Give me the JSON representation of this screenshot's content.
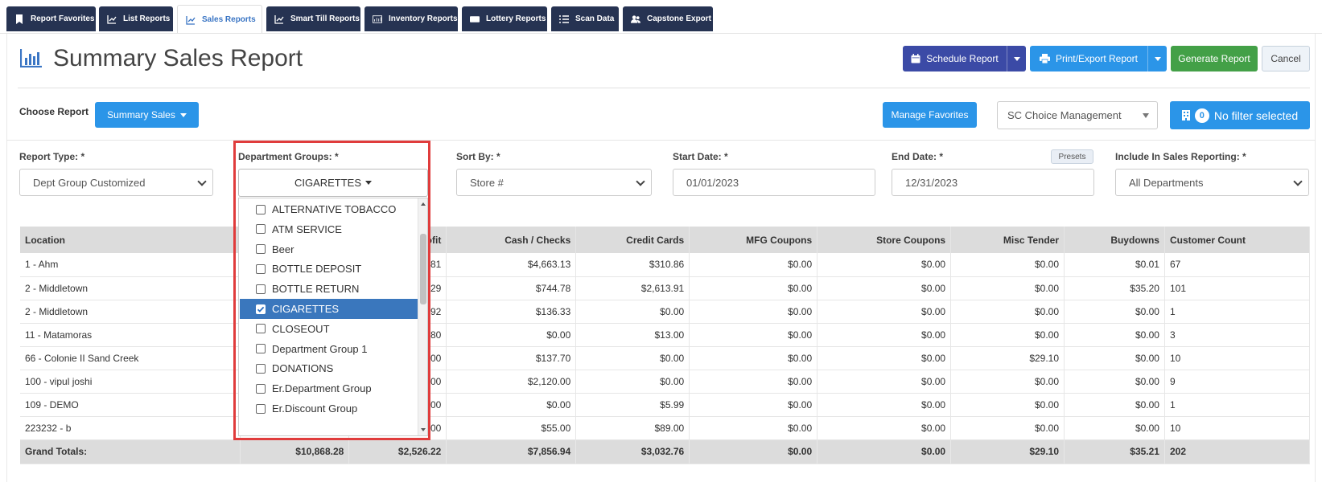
{
  "tabs": [
    {
      "label": "Report Favorites",
      "icon": "bookmark-icon"
    },
    {
      "label": "List Reports",
      "icon": "line-chart-icon"
    },
    {
      "label": "Sales Reports",
      "icon": "line-chart-icon"
    },
    {
      "label": "Smart Till Reports",
      "icon": "line-chart-icon"
    },
    {
      "label": "Inventory Reports",
      "icon": "inventory-icon"
    },
    {
      "label": "Lottery Reports",
      "icon": "ticket-icon"
    },
    {
      "label": "Scan Data",
      "icon": "list-icon"
    },
    {
      "label": "Capstone Export",
      "icon": "users-icon"
    }
  ],
  "header": {
    "title": "Summary Sales Report",
    "schedule_label": "Schedule Report",
    "print_label": "Print/Export Report",
    "generate_label": "Generate Report",
    "cancel_label": "Cancel"
  },
  "choose": {
    "label": "Choose Report",
    "report_button": "Summary Sales",
    "manage_label": "Manage Favorites",
    "store_select": "SC Choice Management",
    "filter_count": "0",
    "filter_label": "No filter selected"
  },
  "filters": {
    "report_type_label": "Report Type: *",
    "report_type_value": "Dept Group Customized",
    "dept_groups_label": "Department Groups: *",
    "dept_groups_value": "CIGARETTES",
    "sort_by_label": "Sort By: *",
    "sort_by_value": "Store #",
    "start_date_label": "Start Date: *",
    "start_date_value": "01/01/2023",
    "end_date_label": "End Date: *",
    "end_date_value": "12/31/2023",
    "presets_label": "Presets",
    "include_label": "Include In Sales Reporting: *",
    "include_value": "All Departments"
  },
  "dropdown": {
    "items": [
      {
        "label": "ALTERNATIVE TOBACCO",
        "checked": false
      },
      {
        "label": "ATM SERVICE",
        "checked": false
      },
      {
        "label": "Beer",
        "checked": false
      },
      {
        "label": "BOTTLE DEPOSIT",
        "checked": false
      },
      {
        "label": "BOTTLE RETURN",
        "checked": false
      },
      {
        "label": "CIGARETTES",
        "checked": true
      },
      {
        "label": "CLOSEOUT",
        "checked": false
      },
      {
        "label": "Department Group 1",
        "checked": false
      },
      {
        "label": "DONATIONS",
        "checked": false
      },
      {
        "label": "Er.Department Group",
        "checked": false
      },
      {
        "label": "Er.Discount Group",
        "checked": false
      }
    ]
  },
  "table": {
    "headers": [
      "Location",
      "",
      "ofit",
      "Cash / Checks",
      "Credit Cards",
      "MFG Coupons",
      "Store Coupons",
      "Misc Tender",
      "Buydowns",
      "Customer Count"
    ],
    "rows": [
      [
        "1 - Ahm",
        "",
        "81",
        "$4,663.13",
        "$310.86",
        "$0.00",
        "$0.00",
        "$0.00",
        "$0.01",
        "67"
      ],
      [
        "2 - Middletown",
        "",
        "29",
        "$744.78",
        "$2,613.91",
        "$0.00",
        "$0.00",
        "$0.00",
        "$35.20",
        "101"
      ],
      [
        "2 - Middletown",
        "",
        "92",
        "$136.33",
        "$0.00",
        "$0.00",
        "$0.00",
        "$0.00",
        "$0.00",
        "1"
      ],
      [
        "11 - Matamoras",
        "",
        "80",
        "$0.00",
        "$13.00",
        "$0.00",
        "$0.00",
        "$0.00",
        "$0.00",
        "3"
      ],
      [
        "66 - Colonie II Sand Creek",
        "",
        "00",
        "$137.70",
        "$0.00",
        "$0.00",
        "$0.00",
        "$29.10",
        "$0.00",
        "10"
      ],
      [
        "100 - vipul joshi",
        "",
        "00",
        "$2,120.00",
        "$0.00",
        "$0.00",
        "$0.00",
        "$0.00",
        "$0.00",
        "9"
      ],
      [
        "109 - DEMO",
        "",
        "00",
        "$0.00",
        "$5.99",
        "$0.00",
        "$0.00",
        "$0.00",
        "$0.00",
        "1"
      ],
      [
        "223232 - b",
        "",
        "00",
        "$55.00",
        "$89.00",
        "$0.00",
        "$0.00",
        "$0.00",
        "$0.00",
        "10"
      ]
    ],
    "totals": [
      "Grand Totals:",
      "$10,868.28",
      "$2,526.22",
      "$7,856.94",
      "$3,032.76",
      "$0.00",
      "$0.00",
      "$29.10",
      "$35.21",
      "202"
    ]
  },
  "colors": {
    "tab_bg": "#263352",
    "primary": "#2b95e8",
    "schedule": "#3b4aa6",
    "generate": "#43a047",
    "highlight_outline": "#e03c3c",
    "selected_item": "#3a77bd"
  }
}
